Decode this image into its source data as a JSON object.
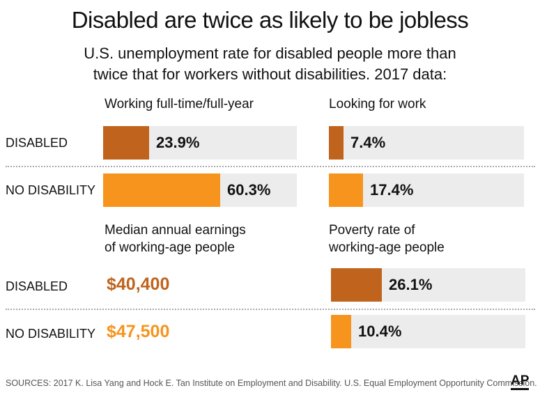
{
  "title": "Disabled are twice as likely to be jobless",
  "subtitle": "U.S. unemployment rate for disabled people more than\ntwice that for workers without disabilities. 2017 data:",
  "row_labels": {
    "disabled": "DISABLED",
    "no_disability": "NO DISABILITY"
  },
  "colors": {
    "disabled": "#c0631d",
    "no_disability": "#f7941d",
    "track": "#ececec"
  },
  "chart_data": [
    {
      "type": "bar",
      "title": "Working full-time/full-year",
      "categories": [
        "DISABLED",
        "NO DISABILITY"
      ],
      "values": [
        23.9,
        60.3
      ],
      "labels": [
        "23.9%",
        "60.3%"
      ],
      "ylim": [
        0,
        100
      ]
    },
    {
      "type": "bar",
      "title": "Looking for work",
      "categories": [
        "DISABLED",
        "NO DISABILITY"
      ],
      "values": [
        7.4,
        17.4
      ],
      "labels": [
        "7.4%",
        "17.4%"
      ],
      "ylim": [
        0,
        100
      ]
    },
    {
      "type": "table",
      "title": "Median annual earnings\nof working-age people",
      "categories": [
        "DISABLED",
        "NO DISABILITY"
      ],
      "values": [
        40400,
        47500
      ],
      "labels": [
        "$40,400",
        "$47,500"
      ]
    },
    {
      "type": "bar",
      "title": "Poverty rate of\nworking-age people",
      "categories": [
        "DISABLED",
        "NO DISABILITY"
      ],
      "values": [
        26.1,
        10.4
      ],
      "labels": [
        "26.1%",
        "10.4%"
      ],
      "ylim": [
        0,
        100
      ]
    }
  ],
  "source": "SOURCES: 2017 K. Lisa Yang and Hock E. Tan Institute on Employment and Disability. U.S. Equal Employment Opportunity Commission.",
  "logo": "AP"
}
